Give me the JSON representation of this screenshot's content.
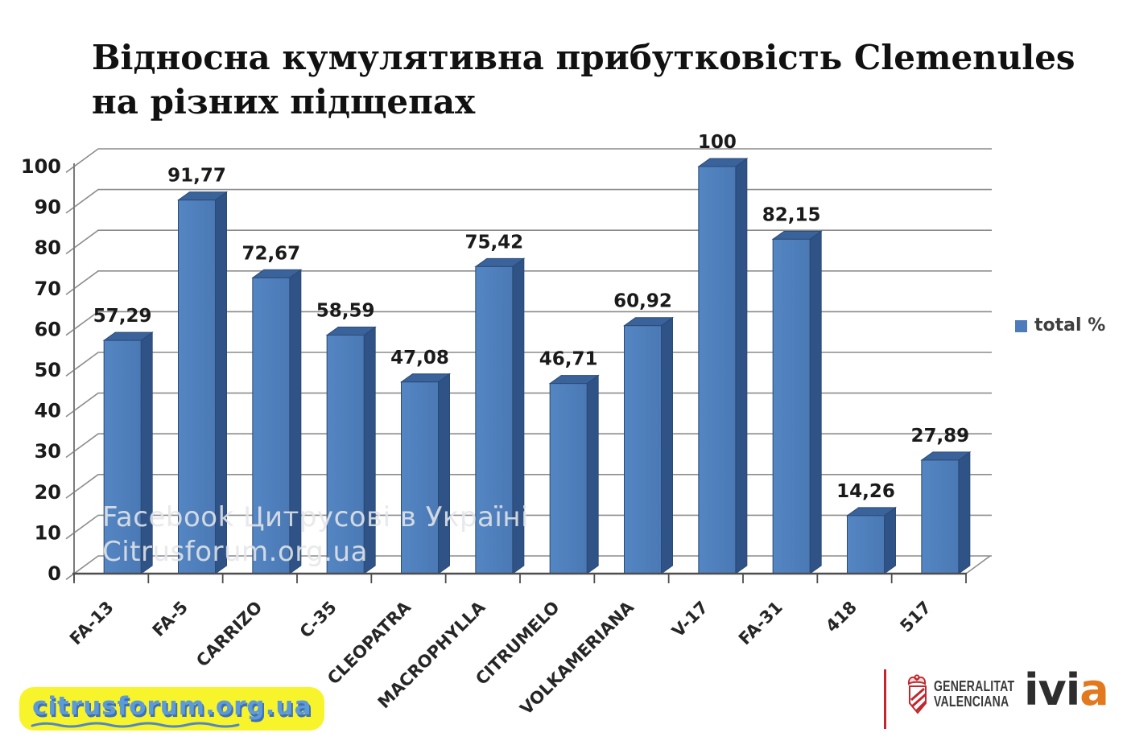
{
  "title": {
    "line1": "Відносна кумулятивна прибутковість Clemenules",
    "line2": "на різних підщепах"
  },
  "legend": {
    "label": "total %",
    "swatch_color": "#4C7DBA"
  },
  "watermark": {
    "line1": "Facebook Цитрусові в Україні",
    "line2": "Citrusforum.org.ua"
  },
  "footer": {
    "site_badge": "citrusforum.org.ua",
    "gva": {
      "line1": "GENERALITAT",
      "line2": "VALENCIANA"
    },
    "ivia": {
      "black": "ivi",
      "orange": "a",
      "orange_color": "#E2791F"
    }
  },
  "chart_data": {
    "type": "bar",
    "title": "Відносна кумулятивна прибутковість Clemenules на різних підщепах",
    "categories": [
      "FA-13",
      "FA-5",
      "CARRIZO",
      "C-35",
      "CLEOPATRA",
      "MACROPHYLLA",
      "CITRUMELO",
      "VOLKAMERIANA",
      "V-17",
      "FA-31",
      "418",
      "517"
    ],
    "values": [
      57.29,
      91.77,
      72.67,
      58.59,
      47.08,
      75.42,
      46.71,
      60.92,
      100,
      82.15,
      14.26,
      27.89
    ],
    "value_labels": [
      "57,29",
      "91,77",
      "72,67",
      "58,59",
      "47,08",
      "75,42",
      "46,71",
      "60,92",
      "100",
      "82,15",
      "14,26",
      "27,89"
    ],
    "series": [
      {
        "name": "total %",
        "values": [
          57.29,
          91.77,
          72.67,
          58.59,
          47.08,
          75.42,
          46.71,
          60.92,
          100,
          82.15,
          14.26,
          27.89
        ]
      }
    ],
    "xlabel": "",
    "ylabel": "",
    "ylim": [
      0,
      100
    ],
    "yticks": [
      0,
      10,
      20,
      30,
      40,
      50,
      60,
      70,
      80,
      90,
      100
    ],
    "grid": true,
    "legend_position": "right",
    "style_3d": true,
    "colors": {
      "bar_front": "#4A79B5",
      "bar_front_light": "#5486C3",
      "bar_top": "#3A639C",
      "bar_side": "#2F5387",
      "bar_outline": "#2B4A74",
      "grid": "#8C8C8C",
      "axis": "#7A7A7A",
      "baseline": "#4D4D4D",
      "label": "#1A1A1A"
    }
  }
}
